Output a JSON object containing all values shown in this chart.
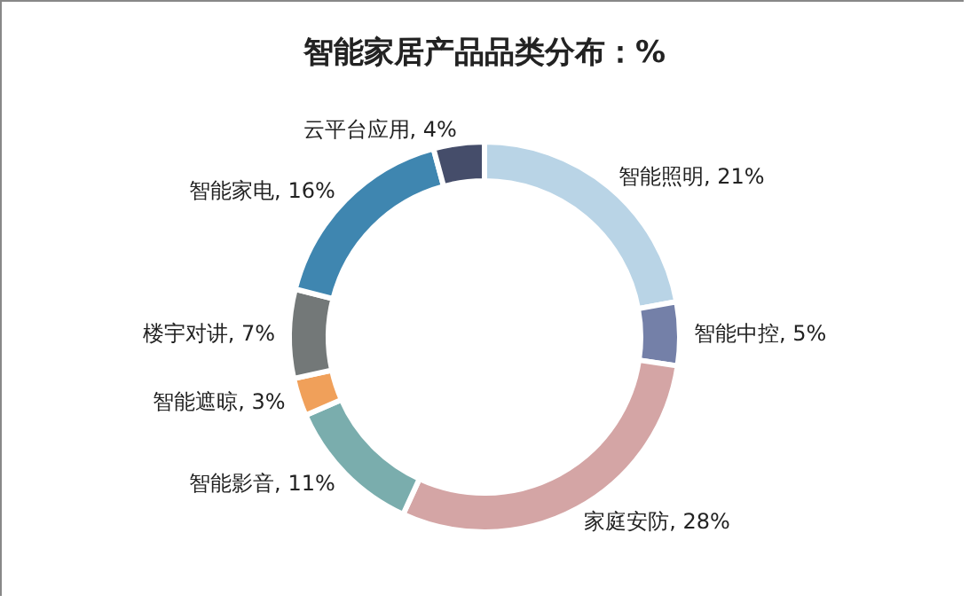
{
  "chart_data": {
    "type": "donut",
    "title": "智能家居产品品类分布：%",
    "categories": [
      "智能照明",
      "智能中控",
      "家庭安防",
      "智能影音",
      "智能遮晾",
      "楼宇对讲",
      "智能家电",
      "云平台应用"
    ],
    "values": [
      21,
      5,
      28,
      11,
      3,
      7,
      16,
      4
    ],
    "value_labels": [
      "21%",
      "5%",
      "28%",
      "11%",
      "3%",
      "7%",
      "16%",
      "4%"
    ],
    "colors": [
      "#b9d4e6",
      "#7480a8",
      "#d4a5a5",
      "#7aadad",
      "#f0a05a",
      "#737878",
      "#3f86b0",
      "#454d6a"
    ]
  }
}
